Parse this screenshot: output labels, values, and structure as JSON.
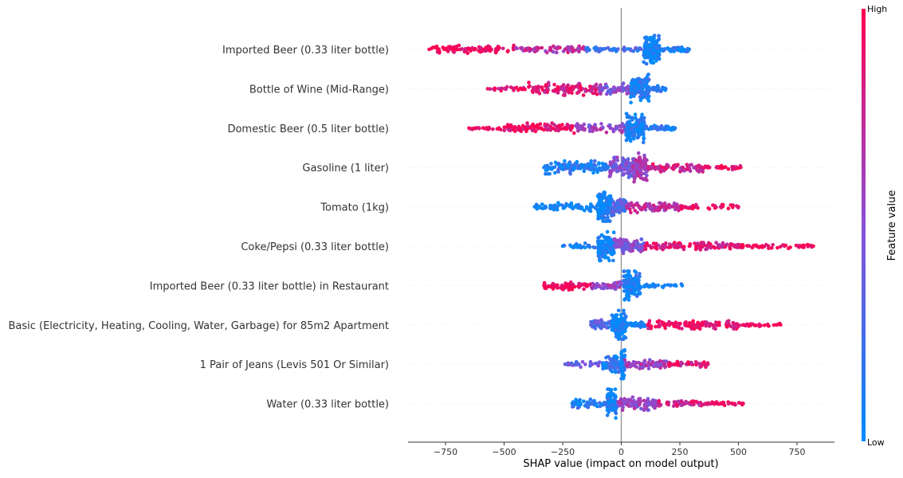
{
  "chart_data": {
    "type": "scatter",
    "subtype": "shap-beeswarm",
    "title": "",
    "xlabel": "SHAP value (impact on model output)",
    "ylabel": "",
    "xlim": [
      -910,
      910
    ],
    "xticks": [
      -750,
      -500,
      -250,
      0,
      250,
      500,
      750
    ],
    "xtick_labels": [
      "−750",
      "−500",
      "−250",
      "0",
      "250",
      "500",
      "750"
    ],
    "grid": false,
    "colorbar": {
      "label": "Feature value",
      "high_label": "High",
      "low_label": "Low",
      "low_color": "#008bfb",
      "high_color": "#ff0052"
    },
    "features": [
      {
        "name": "Imported Beer (0.33 liter bottle)",
        "min": -820,
        "max": 290,
        "segments": [
          {
            "x0": -820,
            "x1": -450,
            "spread": 0.28,
            "color": 0.97,
            "n": 90
          },
          {
            "x0": -450,
            "x1": -150,
            "spread": 0.22,
            "color": 0.7,
            "n": 70
          },
          {
            "x0": -150,
            "x1": 90,
            "spread": 0.15,
            "color": 0.25,
            "n": 50
          },
          {
            "x0": 95,
            "x1": 165,
            "spread": 1.0,
            "color": 0.05,
            "n": 140
          },
          {
            "x0": 165,
            "x1": 290,
            "spread": 0.2,
            "color": 0.1,
            "n": 40
          }
        ]
      },
      {
        "name": "Bottle of Wine (Mid-Range)",
        "min": -570,
        "max": 190,
        "segments": [
          {
            "x0": -570,
            "x1": -400,
            "spread": 0.15,
            "color": 0.9,
            "n": 25
          },
          {
            "x0": -400,
            "x1": -100,
            "spread": 0.45,
            "color": 0.85,
            "n": 110
          },
          {
            "x0": -100,
            "x1": 40,
            "spread": 0.4,
            "color": 0.5,
            "n": 60
          },
          {
            "x0": 40,
            "x1": 120,
            "spread": 1.0,
            "color": 0.12,
            "n": 150
          },
          {
            "x0": 120,
            "x1": 190,
            "spread": 0.2,
            "color": 0.1,
            "n": 25
          }
        ]
      },
      {
        "name": "Domestic Beer (0.5 liter bottle)",
        "min": -650,
        "max": 230,
        "segments": [
          {
            "x0": -650,
            "x1": -500,
            "spread": 0.15,
            "color": 0.97,
            "n": 25
          },
          {
            "x0": -500,
            "x1": -200,
            "spread": 0.35,
            "color": 0.92,
            "n": 100
          },
          {
            "x0": -200,
            "x1": 20,
            "spread": 0.3,
            "color": 0.55,
            "n": 60
          },
          {
            "x0": 20,
            "x1": 100,
            "spread": 1.0,
            "color": 0.1,
            "n": 150
          },
          {
            "x0": 100,
            "x1": 230,
            "spread": 0.2,
            "color": 0.12,
            "n": 40
          }
        ]
      },
      {
        "name": "Gasoline (1 liter)",
        "min": -330,
        "max": 510,
        "segments": [
          {
            "x0": -330,
            "x1": -50,
            "spread": 0.45,
            "color": 0.1,
            "n": 110
          },
          {
            "x0": -50,
            "x1": 50,
            "spread": 0.7,
            "color": 0.45,
            "n": 90
          },
          {
            "x0": 50,
            "x1": 110,
            "spread": 1.0,
            "color": 0.6,
            "n": 110
          },
          {
            "x0": 110,
            "x1": 350,
            "spread": 0.3,
            "color": 0.8,
            "n": 90
          },
          {
            "x0": 350,
            "x1": 510,
            "spread": 0.15,
            "color": 0.95,
            "n": 30
          }
        ]
      },
      {
        "name": "Tomato (1kg)",
        "min": -370,
        "max": 500,
        "segments": [
          {
            "x0": -370,
            "x1": -100,
            "spread": 0.3,
            "color": 0.05,
            "n": 70
          },
          {
            "x0": -100,
            "x1": -40,
            "spread": 1.0,
            "color": 0.05,
            "n": 130
          },
          {
            "x0": -40,
            "x1": 20,
            "spread": 0.6,
            "color": 0.3,
            "n": 70
          },
          {
            "x0": 20,
            "x1": 250,
            "spread": 0.4,
            "color": 0.7,
            "n": 110
          },
          {
            "x0": 250,
            "x1": 500,
            "spread": 0.15,
            "color": 0.9,
            "n": 35
          }
        ]
      },
      {
        "name": "Coke/Pepsi (0.33 liter bottle)",
        "min": -250,
        "max": 820,
        "segments": [
          {
            "x0": -250,
            "x1": -100,
            "spread": 0.2,
            "color": 0.05,
            "n": 25
          },
          {
            "x0": -100,
            "x1": -30,
            "spread": 1.0,
            "color": 0.05,
            "n": 130
          },
          {
            "x0": -30,
            "x1": 100,
            "spread": 0.5,
            "color": 0.45,
            "n": 90
          },
          {
            "x0": 100,
            "x1": 500,
            "spread": 0.25,
            "color": 0.85,
            "n": 120
          },
          {
            "x0": 500,
            "x1": 820,
            "spread": 0.15,
            "color": 0.97,
            "n": 55
          }
        ]
      },
      {
        "name": "Imported Beer (0.33 liter bottle) in Restaurant",
        "min": -330,
        "max": 260,
        "segments": [
          {
            "x0": -330,
            "x1": -130,
            "spread": 0.3,
            "color": 0.95,
            "n": 80
          },
          {
            "x0": -130,
            "x1": 10,
            "spread": 0.25,
            "color": 0.6,
            "n": 50
          },
          {
            "x0": 10,
            "x1": 80,
            "spread": 1.0,
            "color": 0.08,
            "n": 140
          },
          {
            "x0": 80,
            "x1": 260,
            "spread": 0.15,
            "color": 0.05,
            "n": 30
          }
        ]
      },
      {
        "name": "Basic (Electricity, Heating, Cooling, Water, Garbage) for 85m2 Apartment",
        "min": -130,
        "max": 680,
        "segments": [
          {
            "x0": -130,
            "x1": -40,
            "spread": 0.35,
            "color": 0.3,
            "n": 50
          },
          {
            "x0": -40,
            "x1": 20,
            "spread": 1.0,
            "color": 0.05,
            "n": 140
          },
          {
            "x0": 20,
            "x1": 110,
            "spread": 0.2,
            "color": 0.1,
            "n": 45
          },
          {
            "x0": 110,
            "x1": 500,
            "spread": 0.28,
            "color": 0.92,
            "n": 130
          },
          {
            "x0": 500,
            "x1": 680,
            "spread": 0.12,
            "color": 0.97,
            "n": 30
          }
        ]
      },
      {
        "name": "1 Pair of Jeans (Levis 501 Or Similar)",
        "min": -240,
        "max": 370,
        "segments": [
          {
            "x0": -240,
            "x1": -80,
            "spread": 0.2,
            "color": 0.35,
            "n": 30
          },
          {
            "x0": -80,
            "x1": 0,
            "spread": 0.55,
            "color": 0.15,
            "n": 80
          },
          {
            "x0": 0,
            "x1": 15,
            "spread": 1.0,
            "color": 0.05,
            "n": 60
          },
          {
            "x0": 15,
            "x1": 200,
            "spread": 0.3,
            "color": 0.6,
            "n": 80
          },
          {
            "x0": 200,
            "x1": 370,
            "spread": 0.2,
            "color": 0.85,
            "n": 45
          }
        ]
      },
      {
        "name": "Water (0.33 liter bottle)",
        "min": -210,
        "max": 520,
        "segments": [
          {
            "x0": -210,
            "x1": -60,
            "spread": 0.3,
            "color": 0.1,
            "n": 50
          },
          {
            "x0": -60,
            "x1": -20,
            "spread": 1.0,
            "color": 0.05,
            "n": 120
          },
          {
            "x0": -20,
            "x1": 150,
            "spread": 0.45,
            "color": 0.55,
            "n": 100
          },
          {
            "x0": 150,
            "x1": 380,
            "spread": 0.2,
            "color": 0.8,
            "n": 60
          },
          {
            "x0": 380,
            "x1": 520,
            "spread": 0.12,
            "color": 0.95,
            "n": 30
          }
        ]
      }
    ]
  }
}
